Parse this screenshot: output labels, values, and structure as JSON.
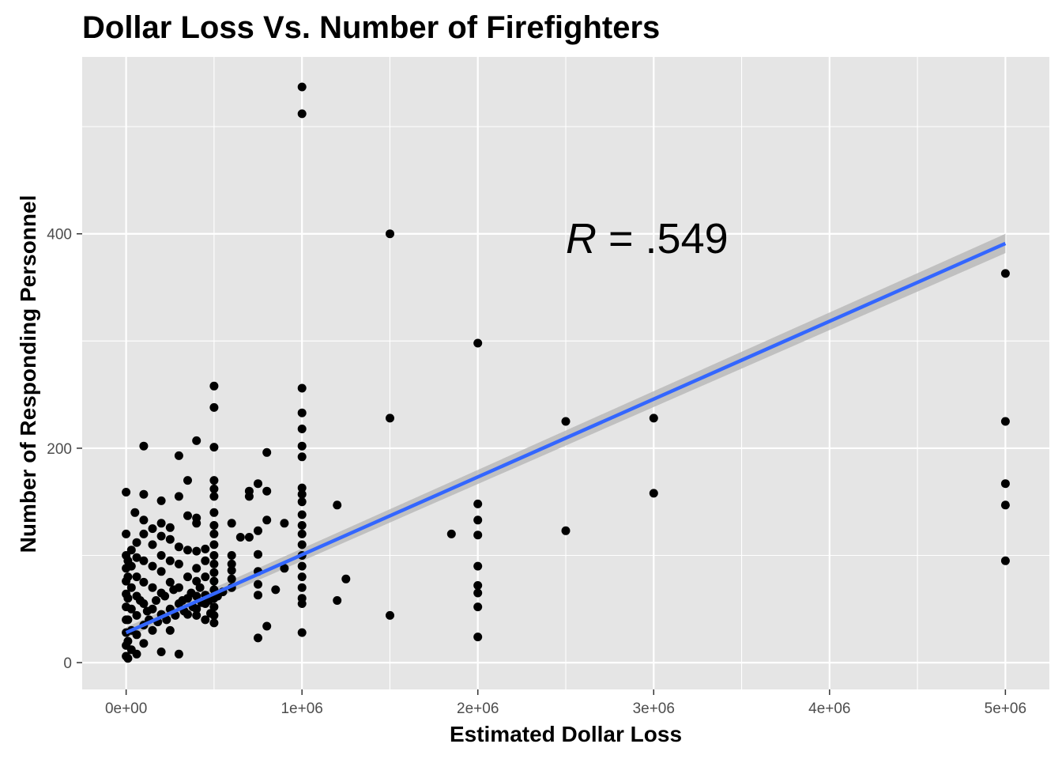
{
  "chart_data": {
    "type": "scatter",
    "title": "Dollar Loss Vs. Number of Firefighters",
    "xlabel": "Estimated Dollar Loss",
    "ylabel": "Number of Responding Personnel",
    "xlim": [
      -250000,
      5250000
    ],
    "ylim": [
      -25,
      565
    ],
    "x_ticks": [
      {
        "value": 0,
        "label": "0e+00"
      },
      {
        "value": 1000000,
        "label": "1e+06"
      },
      {
        "value": 2000000,
        "label": "2e+06"
      },
      {
        "value": 3000000,
        "label": "3e+06"
      },
      {
        "value": 4000000,
        "label": "4e+06"
      },
      {
        "value": 5000000,
        "label": "5e+06"
      }
    ],
    "y_ticks": [
      {
        "value": 0,
        "label": "0"
      },
      {
        "value": 200,
        "label": "200"
      },
      {
        "value": 400,
        "label": "400"
      }
    ],
    "grid": true,
    "points": [
      [
        1000000,
        537
      ],
      [
        1000000,
        512
      ],
      [
        1500000,
        400
      ],
      [
        2000000,
        298
      ],
      [
        1000000,
        256
      ],
      [
        1000000,
        233
      ],
      [
        1000000,
        218
      ],
      [
        1000000,
        202
      ],
      [
        1000000,
        192
      ],
      [
        1000000,
        163
      ],
      [
        1000000,
        157
      ],
      [
        1000000,
        150
      ],
      [
        1000000,
        138
      ],
      [
        1000000,
        128
      ],
      [
        1000000,
        120
      ],
      [
        1000000,
        110
      ],
      [
        1000000,
        100
      ],
      [
        1000000,
        90
      ],
      [
        1000000,
        80
      ],
      [
        1000000,
        70
      ],
      [
        1000000,
        60
      ],
      [
        1000000,
        55
      ],
      [
        1000000,
        28
      ],
      [
        1500000,
        228
      ],
      [
        1500000,
        44
      ],
      [
        2000000,
        148
      ],
      [
        2000000,
        133
      ],
      [
        2000000,
        119
      ],
      [
        2000000,
        90
      ],
      [
        2000000,
        72
      ],
      [
        2000000,
        65
      ],
      [
        2000000,
        52
      ],
      [
        2000000,
        24
      ],
      [
        2500000,
        225
      ],
      [
        2500000,
        123
      ],
      [
        3000000,
        228
      ],
      [
        3000000,
        158
      ],
      [
        5000000,
        363
      ],
      [
        5000000,
        225
      ],
      [
        5000000,
        167
      ],
      [
        5000000,
        147
      ],
      [
        5000000,
        95
      ],
      [
        1850000,
        120
      ],
      [
        1200000,
        147
      ],
      [
        1200000,
        58
      ],
      [
        1250000,
        78
      ],
      [
        500000,
        258
      ],
      [
        500000,
        238
      ],
      [
        500000,
        201
      ],
      [
        500000,
        170
      ],
      [
        500000,
        162
      ],
      [
        500000,
        155
      ],
      [
        500000,
        140
      ],
      [
        500000,
        128
      ],
      [
        500000,
        120
      ],
      [
        500000,
        110
      ],
      [
        500000,
        100
      ],
      [
        500000,
        92
      ],
      [
        500000,
        84
      ],
      [
        500000,
        76
      ],
      [
        500000,
        68
      ],
      [
        500000,
        60
      ],
      [
        500000,
        52
      ],
      [
        500000,
        44
      ],
      [
        500000,
        37
      ],
      [
        400000,
        207
      ],
      [
        350000,
        170
      ],
      [
        300000,
        193
      ],
      [
        100000,
        202
      ],
      [
        0,
        159
      ],
      [
        100000,
        157
      ],
      [
        200000,
        151
      ],
      [
        300000,
        155
      ],
      [
        400000,
        135
      ],
      [
        350000,
        137
      ],
      [
        250000,
        126
      ],
      [
        200000,
        130
      ],
      [
        150000,
        125
      ],
      [
        100000,
        133
      ],
      [
        50000,
        140
      ],
      [
        0,
        120
      ],
      [
        750000,
        167
      ],
      [
        700000,
        160
      ],
      [
        700000,
        155
      ],
      [
        800000,
        196
      ],
      [
        800000,
        160
      ],
      [
        800000,
        133
      ],
      [
        850000,
        68
      ],
      [
        900000,
        130
      ],
      [
        900000,
        88
      ],
      [
        800000,
        34
      ],
      [
        750000,
        23
      ],
      [
        750000,
        123
      ],
      [
        750000,
        101
      ],
      [
        750000,
        85
      ],
      [
        750000,
        73
      ],
      [
        750000,
        63
      ],
      [
        600000,
        130
      ],
      [
        600000,
        100
      ],
      [
        600000,
        92
      ],
      [
        600000,
        86
      ],
      [
        600000,
        78
      ],
      [
        600000,
        70
      ],
      [
        700000,
        117
      ],
      [
        650000,
        117
      ],
      [
        450000,
        106
      ],
      [
        450000,
        95
      ],
      [
        450000,
        80
      ],
      [
        450000,
        63
      ],
      [
        450000,
        55
      ],
      [
        450000,
        40
      ],
      [
        400000,
        130
      ],
      [
        400000,
        104
      ],
      [
        400000,
        88
      ],
      [
        400000,
        76
      ],
      [
        400000,
        62
      ],
      [
        400000,
        50
      ],
      [
        400000,
        44
      ],
      [
        350000,
        105
      ],
      [
        350000,
        80
      ],
      [
        350000,
        60
      ],
      [
        350000,
        45
      ],
      [
        300000,
        108
      ],
      [
        300000,
        92
      ],
      [
        300000,
        70
      ],
      [
        300000,
        55
      ],
      [
        300000,
        8
      ],
      [
        250000,
        115
      ],
      [
        250000,
        95
      ],
      [
        250000,
        75
      ],
      [
        250000,
        50
      ],
      [
        250000,
        30
      ],
      [
        200000,
        118
      ],
      [
        200000,
        100
      ],
      [
        200000,
        85
      ],
      [
        200000,
        65
      ],
      [
        200000,
        45
      ],
      [
        200000,
        10
      ],
      [
        150000,
        110
      ],
      [
        150000,
        90
      ],
      [
        150000,
        70
      ],
      [
        150000,
        50
      ],
      [
        150000,
        30
      ],
      [
        100000,
        120
      ],
      [
        100000,
        95
      ],
      [
        100000,
        75
      ],
      [
        100000,
        55
      ],
      [
        100000,
        35
      ],
      [
        100000,
        18
      ],
      [
        60000,
        112
      ],
      [
        60000,
        98
      ],
      [
        60000,
        80
      ],
      [
        60000,
        62
      ],
      [
        60000,
        44
      ],
      [
        60000,
        26
      ],
      [
        60000,
        8
      ],
      [
        30000,
        105
      ],
      [
        30000,
        90
      ],
      [
        30000,
        70
      ],
      [
        30000,
        50
      ],
      [
        30000,
        30
      ],
      [
        30000,
        12
      ],
      [
        0,
        100
      ],
      [
        0,
        88
      ],
      [
        0,
        76
      ],
      [
        0,
        64
      ],
      [
        0,
        52
      ],
      [
        0,
        40
      ],
      [
        0,
        28
      ],
      [
        0,
        16
      ],
      [
        0,
        6
      ],
      [
        10000,
        95
      ],
      [
        10000,
        80
      ],
      [
        10000,
        60
      ],
      [
        10000,
        40
      ],
      [
        10000,
        20
      ],
      [
        10000,
        4
      ],
      [
        120000,
        48
      ],
      [
        170000,
        58
      ],
      [
        220000,
        62
      ],
      [
        270000,
        68
      ],
      [
        320000,
        58
      ],
      [
        370000,
        65
      ],
      [
        420000,
        70
      ],
      [
        470000,
        58
      ],
      [
        520000,
        62
      ],
      [
        550000,
        66
      ],
      [
        80000,
        58
      ],
      [
        130000,
        40
      ],
      [
        180000,
        38
      ],
      [
        230000,
        40
      ],
      [
        280000,
        44
      ],
      [
        330000,
        48
      ],
      [
        380000,
        52
      ],
      [
        430000,
        56
      ],
      [
        480000,
        46
      ]
    ],
    "regression": {
      "x_start": 0,
      "y_start": 28,
      "x_end": 5000000,
      "y_end": 391,
      "se_lower": [
        [
          0,
          23
        ],
        [
          5000000,
          382
        ]
      ],
      "se_upper": [
        [
          0,
          33
        ],
        [
          5000000,
          400
        ]
      ],
      "line_color": "#3366FF",
      "ribbon_color": "#b3b3b3"
    },
    "annotation": {
      "italic": "R",
      "rest": " = .549",
      "x": 2500000,
      "y": 397
    },
    "colors": {
      "panel_background": "#E5E5E5",
      "grid": "#FFFFFF",
      "point": "#000000"
    }
  }
}
